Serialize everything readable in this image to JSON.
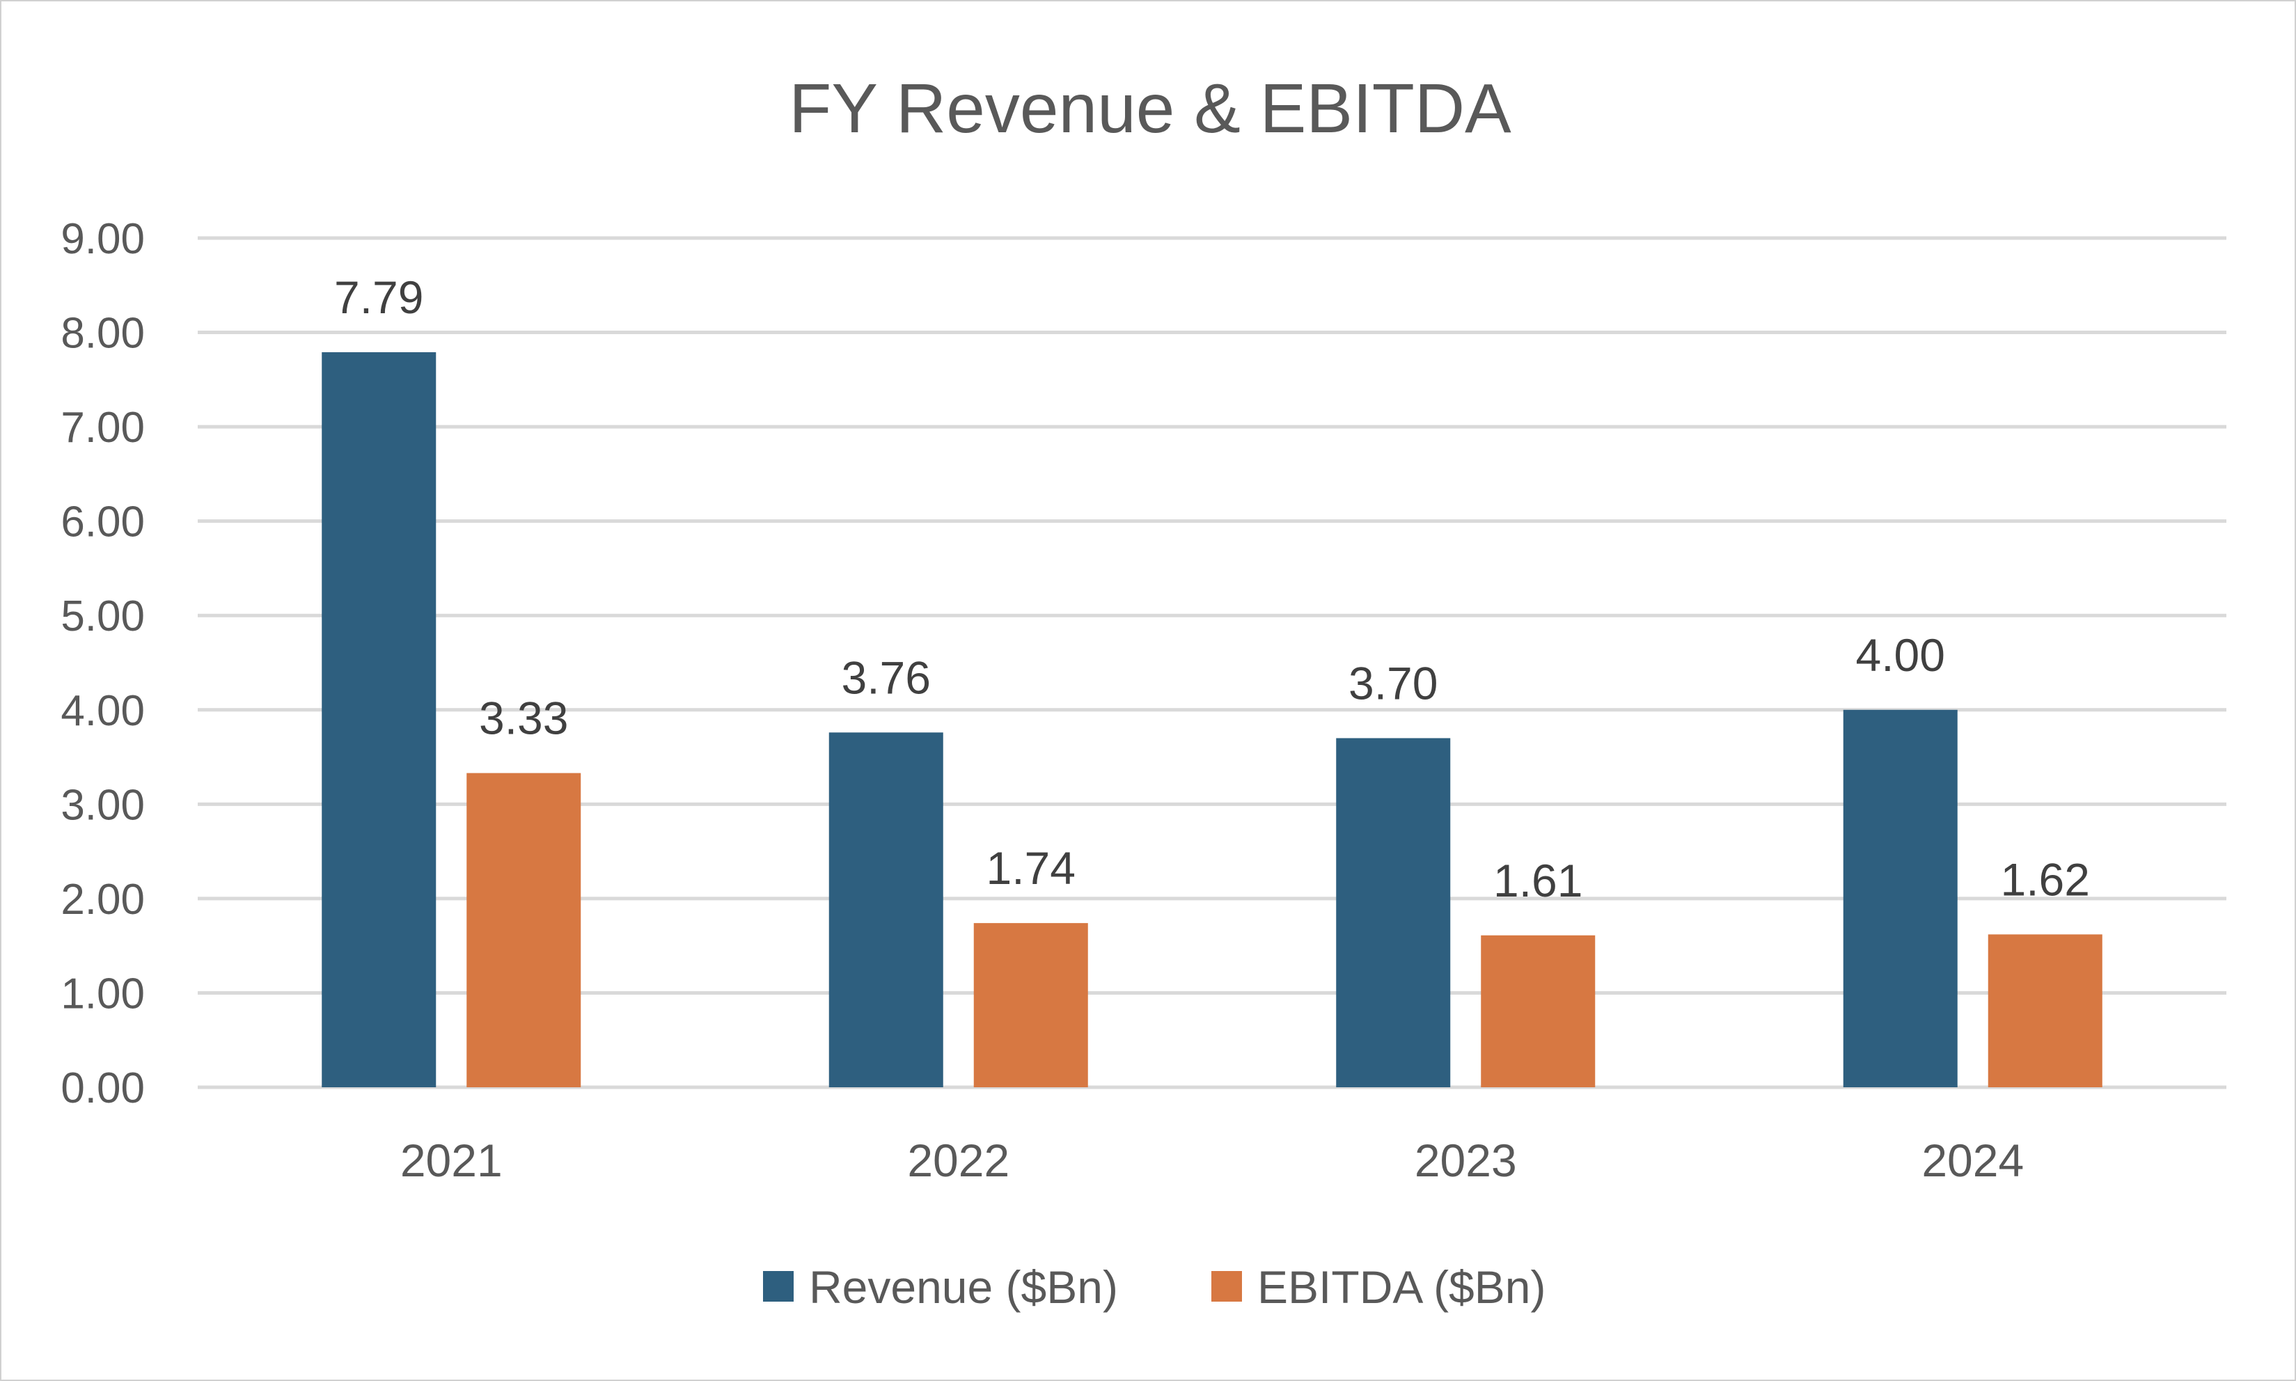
{
  "chart_data": {
    "type": "bar",
    "title": "FY Revenue & EBITDA",
    "xlabel": "",
    "ylabel": "",
    "categories": [
      "2021",
      "2022",
      "2023",
      "2024"
    ],
    "series": [
      {
        "name": "Revenue ($Bn)",
        "values": [
          7.79,
          3.76,
          3.7,
          4.0
        ],
        "labels": [
          "7.79",
          "3.76",
          "3.70",
          "4.00"
        ],
        "color": "#2E5F7F"
      },
      {
        "name": "EBITDA ($Bn)",
        "values": [
          3.33,
          1.74,
          1.61,
          1.62
        ],
        "labels": [
          "3.33",
          "1.74",
          "1.61",
          "1.62"
        ],
        "color": "#D77842"
      }
    ],
    "ylim": [
      0,
      9
    ],
    "yticks": [
      0,
      1,
      2,
      3,
      4,
      5,
      6,
      7,
      8,
      9
    ],
    "ytick_labels": [
      "0.00",
      "1.00",
      "2.00",
      "3.00",
      "4.00",
      "5.00",
      "6.00",
      "7.00",
      "8.00",
      "9.00"
    ],
    "grid": true,
    "legend_position": "bottom-center"
  }
}
